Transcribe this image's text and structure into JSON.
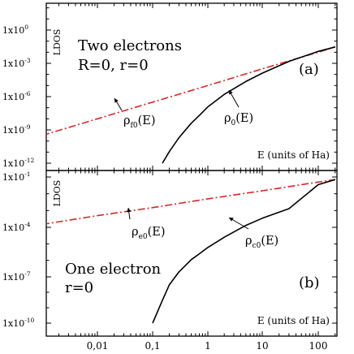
{
  "chart_data": [
    {
      "panel": "top",
      "type": "line",
      "ylabel": "LDOS",
      "xlabel": "E (units of Ha)",
      "panel_tag": "(a)",
      "annotation": [
        "Two electrons",
        "R=0, r=0"
      ],
      "xscale": "log",
      "yscale": "log",
      "xlim": [
        0.001,
        200
      ],
      "ylim": [
        1e-12,
        100.0
      ],
      "xtick_values": [
        0.01,
        0.1,
        1,
        10,
        100
      ],
      "ytick_labels": [
        "1x10",
        "1x10",
        "1x10",
        "1x10",
        "1x10"
      ],
      "ytick_exponents": [
        "-12",
        "-9",
        "-6",
        "-3",
        "0"
      ],
      "ytick_values": [
        1e-12,
        1e-09,
        1e-06,
        0.001,
        1
      ],
      "series": [
        {
          "label_main": "ρ",
          "label_sub": "f0",
          "label_tail": "(E)",
          "style": "dashdot",
          "color": "#d42a2a",
          "x": [
            0.001,
            0.01,
            0.1,
            1,
            10,
            100,
            200
          ],
          "y": [
            3.2e-10,
            1e-08,
            3.2e-07,
            1e-05,
            0.00032,
            0.01,
            0.03
          ]
        },
        {
          "label_main": "ρ",
          "label_sub": "0",
          "label_tail": "(E)",
          "style": "solid",
          "color": "#000000",
          "x": [
            0.15,
            0.2,
            0.3,
            0.5,
            0.7,
            1,
            2,
            5,
            10,
            30,
            100,
            200
          ],
          "y": [
            1e-12,
            1.1e-11,
            2e-10,
            4e-09,
            2e-08,
            1.2e-07,
            1.6e-06,
            2.3e-05,
            0.00013,
            0.0015,
            0.012,
            0.03
          ]
        }
      ]
    },
    {
      "panel": "bottom",
      "type": "line",
      "ylabel": "LDOS",
      "xlabel": "E (units of Ha)",
      "panel_tag": "(b)",
      "annotation": [
        "One electron",
        "r=0"
      ],
      "xscale": "log",
      "yscale": "log",
      "xlim": [
        0.001,
        200
      ],
      "ylim": [
        1e-10,
        0.3
      ],
      "xtick_labels": [
        "0,01",
        "0,1",
        "1",
        "10",
        "100"
      ],
      "xtick_values": [
        0.01,
        0.1,
        1,
        10,
        100
      ],
      "ytick_labels": [
        "1x10",
        "1x10",
        "1x10",
        "1x10"
      ],
      "ytick_exponents": [
        "-10",
        "-7",
        "-4",
        "-1"
      ],
      "ytick_values": [
        1e-10,
        1e-07,
        0.0001,
        0.1
      ],
      "series": [
        {
          "label_main": "ρ",
          "label_sub": "e0",
          "label_tail": "(E)",
          "style": "dashdot",
          "color": "#d42a2a",
          "x": [
            0.001,
            0.01,
            0.1,
            1,
            10,
            100,
            200
          ],
          "y": [
            0.00015,
            0.0005,
            0.0015,
            0.005,
            0.015,
            0.05,
            0.07
          ]
        },
        {
          "label_main": "ρ",
          "label_sub": "c0",
          "label_tail": "(E)",
          "style": "solid",
          "color": "#000000",
          "x": [
            0.1,
            0.15,
            0.2,
            0.3,
            0.5,
            0.7,
            1,
            2,
            5,
            10,
            30,
            100,
            200
          ],
          "y": [
            1e-10,
            3e-09,
            3e-08,
            2e-07,
            1.1e-06,
            2.5e-06,
            6e-06,
            2.5e-05,
            0.00013,
            0.00035,
            0.0013,
            0.035,
            0.07
          ]
        }
      ]
    }
  ]
}
